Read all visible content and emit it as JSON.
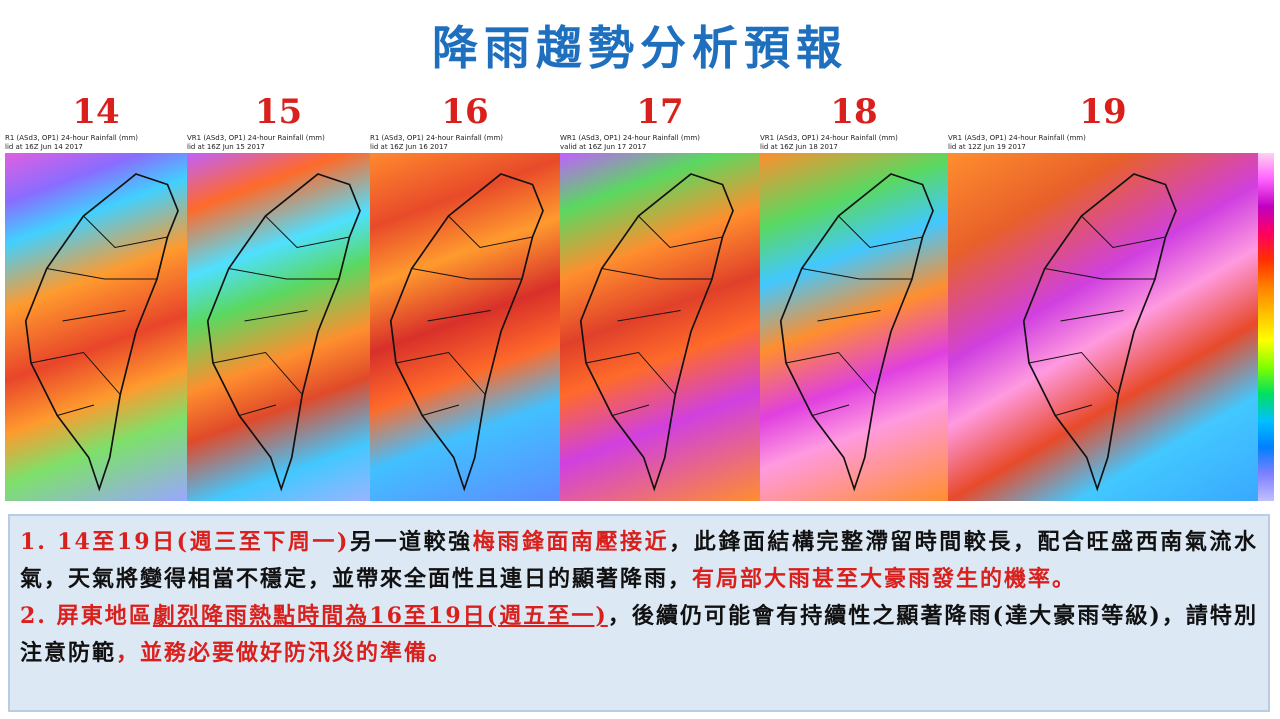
{
  "title": "降雨趨勢分析預報",
  "panels": [
    {
      "day": "14",
      "header": "R1 (ASd3, OP1) 24-hour Rainfall (mm)",
      "valid": "lid at 16Z Jun 14 2017"
    },
    {
      "day": "15",
      "header": "VR1 (ASd3, OP1) 24-hour Rainfall (mm)",
      "valid": "lid at 16Z Jun 15 2017"
    },
    {
      "day": "16",
      "header": "R1 (ASd3, OP1) 24-hour Rainfall (mm)",
      "valid": "lid at 16Z Jun 16 2017"
    },
    {
      "day": "17",
      "header": "WR1 (ASd3, OP1) 24-hour Rainfall (mm)",
      "valid": "valid at 16Z Jun 17 2017"
    },
    {
      "day": "18",
      "header": "VR1 (ASd3, OP1) 24-hour Rainfall (mm)",
      "valid": "lid at 16Z Jun 18 2017"
    },
    {
      "day": "19",
      "header": "VR1 (ASd3, OP1) 24-hour Rainfall (mm)",
      "valid": "lid at 12Z Jun 19 2017"
    }
  ],
  "notes": [
    {
      "segments": [
        {
          "text": "1. 14至19日(週三至下周一)",
          "style": "red"
        },
        {
          "text": "另一道較強",
          "style": "black"
        },
        {
          "text": "梅雨鋒面南壓接近",
          "style": "red"
        },
        {
          "text": "，此鋒面結構完整滯留時間較長，配合旺盛西南氣流水氣，天氣將變得相當不穩定，並帶來全面性且連日的顯著降雨，",
          "style": "black"
        },
        {
          "text": "有局部大雨甚至大豪雨發生的機率。",
          "style": "red"
        }
      ]
    },
    {
      "segments": [
        {
          "text": "2. 屏東地區",
          "style": "red"
        },
        {
          "text": "劇烈降雨熱點時間為16至19日(週五至一)",
          "style": "red-underline"
        },
        {
          "text": "，後續仍可能會有持續性之顯著降雨(達大豪雨等級)，請特別注意防範",
          "style": "black"
        },
        {
          "text": "，並務必要做好防汛災的準備。",
          "style": "red"
        }
      ]
    }
  ]
}
